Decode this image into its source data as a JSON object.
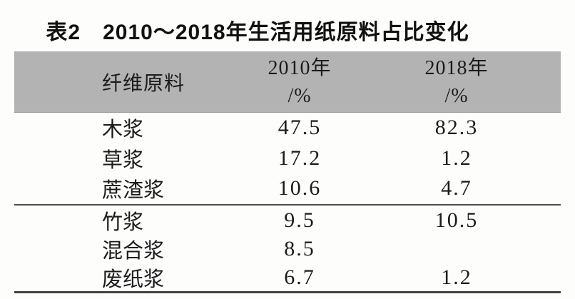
{
  "title": "表2　2010～2018年生活用纸原料占比变化",
  "table": {
    "header": {
      "col1": "纤维原料",
      "col2_line1": "2010年",
      "col2_line2": "/%",
      "col3_line1": "2018年",
      "col3_line2": "/%"
    },
    "rows": [
      {
        "label": "木浆",
        "v2010": "47.5",
        "v2018": "82.3"
      },
      {
        "label": "草浆",
        "v2010": "17.2",
        "v2018": "1.2"
      },
      {
        "label": "蔗渣浆",
        "v2010": "10.6",
        "v2018": "4.7"
      },
      {
        "label": "竹浆",
        "v2010": "9.5",
        "v2018": "10.5"
      },
      {
        "label": "混合浆",
        "v2010": "8.5",
        "v2018": ""
      },
      {
        "label": "废纸浆",
        "v2010": "6.7",
        "v2018": "1.2"
      }
    ],
    "section_break_after_row": 3
  },
  "colors": {
    "header_background": "#b3b3b3",
    "rule_line": "#4c4c4c",
    "page_background": "#fdfdfc",
    "text": "#1b1b1b"
  },
  "chart_data": {
    "type": "table",
    "title": "表2 2010～2018年生活用纸原料占比变化",
    "columns": [
      "纤维原料",
      "2010年/%",
      "2018年/%"
    ],
    "rows": [
      [
        "木浆",
        47.5,
        82.3
      ],
      [
        "草浆",
        17.2,
        1.2
      ],
      [
        "蔗渣浆",
        10.6,
        4.7
      ],
      [
        "竹浆",
        9.5,
        10.5
      ],
      [
        "混合浆",
        8.5,
        null
      ],
      [
        "废纸浆",
        6.7,
        1.2
      ]
    ],
    "notes": "占比 values in percent; 混合浆 has no 2018 value shown"
  }
}
